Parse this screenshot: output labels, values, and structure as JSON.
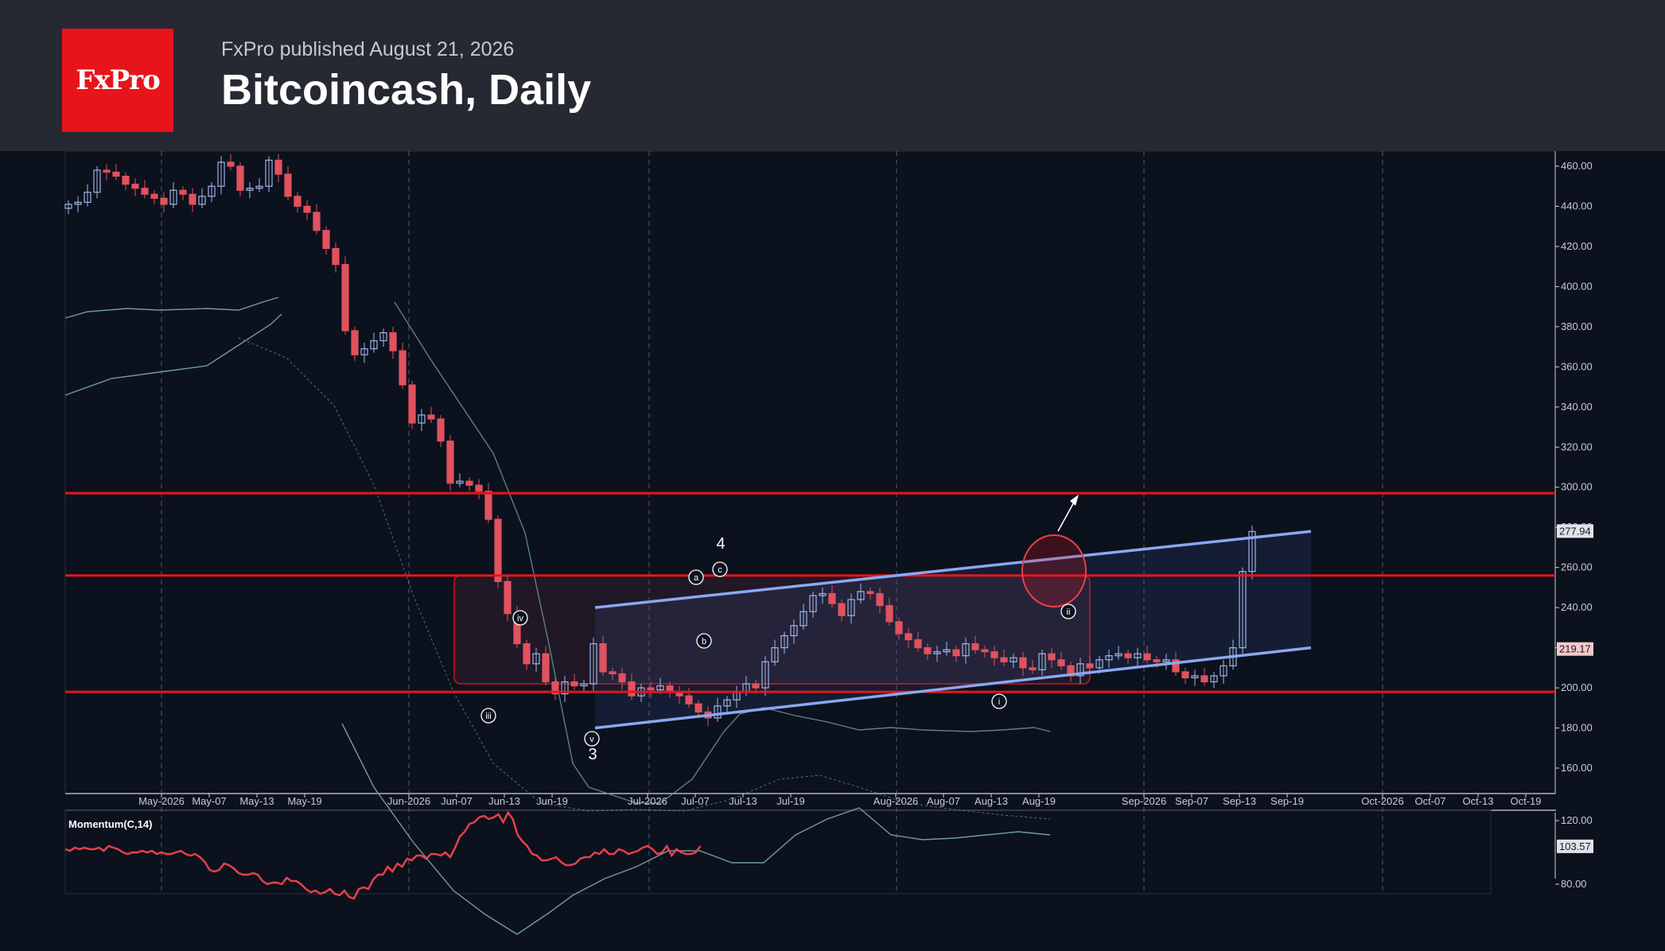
{
  "header": {
    "logo_text": "FxPro",
    "publisher": "FxPro published August 21, 2026",
    "title": "Bitcoincash, Daily"
  },
  "colors": {
    "background": "#0c111e",
    "header_bg": "#262832",
    "logo_bg": "#e8141c",
    "bull_candle": "#9fb6e6",
    "bear_candle": "#e0525e",
    "support_resistance": "#e8141c",
    "channel": "#8aa8ef",
    "bollinger": "#6f9c9c",
    "momentum": "#e8404a"
  },
  "chart_data": [
    {
      "type": "candlestick",
      "ylim": [
        145,
        465
      ],
      "y_ticks": [
        "460.00",
        "440.00",
        "420.00",
        "400.00",
        "380.00",
        "360.00",
        "340.00",
        "320.00",
        "300.00",
        "280.00",
        "260.00",
        "240.00",
        "220.00",
        "200.00",
        "180.00",
        "160.00"
      ],
      "x_ticks": [
        "May-2026",
        "May-07",
        "May-13",
        "May-19",
        "Jun-2026",
        "Jun-07",
        "Jun-13",
        "Jun-19",
        "Jul-2026",
        "Jul-07",
        "Jul-13",
        "Jul-19",
        "Aug-2026",
        "Aug-07",
        "Aug-13",
        "Aug-19",
        "Sep-2026",
        "Sep-07",
        "Sep-13",
        "Sep-19",
        "Oct-2026",
        "Oct-07",
        "Oct-13",
        "Oct-19"
      ],
      "last_price_label": "277.94",
      "secondary_price_label": "219.17",
      "horizontal_levels": [
        297,
        256,
        198
      ],
      "close_series": [
        441,
        442,
        447,
        458,
        457,
        455,
        451,
        449,
        446,
        444,
        441,
        448,
        446,
        441,
        445,
        450,
        462,
        460,
        448,
        449,
        450,
        463,
        456,
        445,
        440,
        437,
        428,
        419,
        411,
        378,
        366,
        369,
        373,
        377,
        368,
        351,
        332,
        336,
        334,
        323,
        302,
        303,
        301,
        298,
        284,
        253,
        237,
        222,
        212,
        217,
        203,
        197,
        203,
        201,
        202,
        222,
        208,
        207,
        203,
        196,
        200,
        199,
        201,
        198,
        196,
        192,
        188,
        185,
        191,
        194,
        198,
        202,
        200,
        213,
        220,
        226,
        231,
        238,
        246,
        247,
        242,
        236,
        244,
        248,
        247,
        241,
        233,
        227,
        224,
        220,
        217,
        218,
        219,
        216,
        222,
        219,
        218,
        215,
        213,
        215,
        210,
        209,
        217,
        214,
        211,
        206,
        212,
        210,
        214,
        216,
        217,
        215,
        217,
        214,
        213,
        214,
        208,
        205,
        206,
        203,
        206,
        211,
        220,
        258,
        277.94
      ],
      "wave_labels": [
        "iii",
        "iv",
        "v",
        "3",
        "a",
        "b",
        "c",
        "4",
        "i",
        "ii"
      ]
    },
    {
      "type": "line",
      "title": "Momentum(C,14)",
      "ylim": [
        75,
        125
      ],
      "y_ticks": [
        "120.00",
        "80.00"
      ],
      "last_value_label": "103.57",
      "values": [
        102,
        101,
        103,
        102,
        103,
        102,
        102,
        103,
        101,
        104,
        103,
        102,
        100,
        99,
        100,
        100,
        101,
        100,
        101,
        99,
        100,
        99,
        99,
        100,
        101,
        99,
        98,
        99,
        97,
        94,
        89,
        88,
        89,
        93,
        92,
        90,
        87,
        86,
        86,
        87,
        86,
        82,
        80,
        81,
        81,
        80,
        84,
        82,
        82,
        80,
        77,
        75,
        76,
        74,
        75,
        77,
        74,
        73,
        76,
        72,
        71,
        77,
        78,
        77,
        83,
        86,
        86,
        91,
        88,
        93,
        91,
        96,
        95,
        98,
        98,
        96,
        99,
        99,
        98,
        100,
        97,
        103,
        110,
        113,
        118,
        119,
        122,
        123,
        121,
        122,
        124,
        119,
        125,
        121,
        111,
        107,
        104,
        99,
        98,
        95,
        95,
        96,
        97,
        94,
        92,
        92,
        93,
        96,
        97,
        97,
        100,
        99,
        102,
        99,
        99,
        102,
        101,
        99,
        100,
        101,
        103,
        104,
        102,
        99,
        100,
        104,
        98,
        102,
        100,
        99,
        99,
        100,
        104
      ]
    }
  ]
}
